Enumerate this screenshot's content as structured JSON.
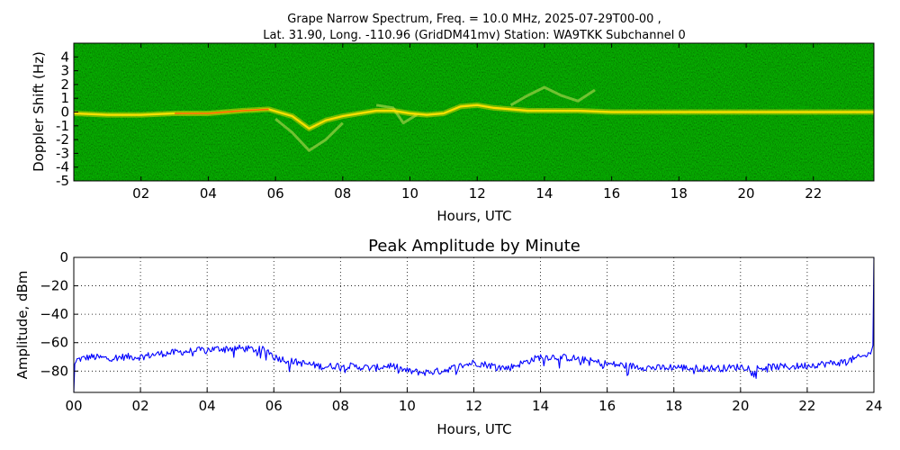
{
  "figure": {
    "title_line1": "Grape Narrow Spectrum, Freq. = 10.0 MHz, 2025-07-29T00-00 ,",
    "title_line2": "Lat.  31.90, Long. -110.96 (GridDM41mv) Station: WA9TKK Subchannel 0"
  },
  "colors": {
    "spectrogram_background": "#0f7d00",
    "spectrogram_carrier": "#ffe000",
    "spectrogram_peak": "#ff5a00",
    "amplitude_line": "#0000ff",
    "axes": "#000000"
  },
  "chart_data": [
    {
      "type": "heatmap",
      "title": "",
      "xlabel": "Hours, UTC",
      "ylabel": "Doppler Shift (Hz)",
      "xlim": [
        0,
        23.8
      ],
      "ylim": [
        -5,
        5
      ],
      "xticks": [
        {
          "v": 2,
          "label": "02"
        },
        {
          "v": 4,
          "label": "04"
        },
        {
          "v": 6,
          "label": "06"
        },
        {
          "v": 8,
          "label": "08"
        },
        {
          "v": 10,
          "label": "10"
        },
        {
          "v": 12,
          "label": "12"
        },
        {
          "v": 14,
          "label": "14"
        },
        {
          "v": 16,
          "label": "16"
        },
        {
          "v": 18,
          "label": "18"
        },
        {
          "v": 20,
          "label": "20"
        },
        {
          "v": 22,
          "label": "22"
        }
      ],
      "yticks": [
        {
          "v": 4,
          "label": "4"
        },
        {
          "v": 3,
          "label": "3"
        },
        {
          "v": 2,
          "label": "2"
        },
        {
          "v": 1,
          "label": "1"
        },
        {
          "v": 0,
          "label": "0"
        },
        {
          "v": -1,
          "label": "-1"
        },
        {
          "v": -2,
          "label": "-2"
        },
        {
          "v": -3,
          "label": "-3"
        },
        {
          "v": -4,
          "label": "-4"
        },
        {
          "v": -5,
          "label": "-5"
        }
      ],
      "carrier_trace": {
        "x": [
          0,
          1,
          2,
          3,
          4,
          5,
          5.8,
          6.5,
          7,
          7.5,
          8,
          8.5,
          9,
          9.5,
          10,
          10.5,
          11,
          11.5,
          12,
          12.5,
          13,
          13.5,
          14,
          15,
          16,
          17,
          18,
          19,
          20,
          21,
          22,
          23,
          23.8
        ],
        "y": [
          -0.1,
          -0.2,
          -0.2,
          -0.1,
          -0.1,
          0.1,
          0.2,
          -0.3,
          -1.2,
          -0.6,
          -0.3,
          -0.1,
          0.1,
          0.1,
          -0.1,
          -0.2,
          -0.1,
          0.4,
          0.5,
          0.3,
          0.2,
          0.1,
          0.1,
          0.1,
          0.0,
          0.0,
          0.0,
          0.0,
          0.0,
          0.0,
          0.0,
          0.0,
          0.0
        ]
      },
      "secondary_traces": [
        {
          "x": [
            6,
            6.5,
            7,
            7.5,
            8
          ],
          "y": [
            -0.5,
            -1.5,
            -2.8,
            -2.0,
            -0.8
          ]
        },
        {
          "x": [
            13,
            13.5,
            14,
            14.5,
            15,
            15.5
          ],
          "y": [
            0.5,
            1.2,
            1.8,
            1.2,
            0.8,
            1.6
          ]
        },
        {
          "x": [
            9,
            9.5,
            9.8,
            10.2
          ],
          "y": [
            0.5,
            0.3,
            -0.8,
            -0.2
          ]
        }
      ]
    },
    {
      "type": "line",
      "title": "Peak Amplitude by Minute",
      "xlabel": "Hours, UTC",
      "ylabel": "Amplitude, dBm",
      "xlim": [
        0,
        24
      ],
      "ylim": [
        -95,
        0
      ],
      "grid": true,
      "xticks": [
        {
          "v": 0,
          "label": "00"
        },
        {
          "v": 2,
          "label": "02"
        },
        {
          "v": 4,
          "label": "04"
        },
        {
          "v": 6,
          "label": "06"
        },
        {
          "v": 8,
          "label": "08"
        },
        {
          "v": 10,
          "label": "10"
        },
        {
          "v": 12,
          "label": "12"
        },
        {
          "v": 14,
          "label": "14"
        },
        {
          "v": 16,
          "label": "16"
        },
        {
          "v": 18,
          "label": "18"
        },
        {
          "v": 20,
          "label": "20"
        },
        {
          "v": 22,
          "label": "22"
        },
        {
          "v": 24,
          "label": "24"
        }
      ],
      "yticks": [
        {
          "v": 0,
          "label": "0"
        },
        {
          "v": -20,
          "label": "−20"
        },
        {
          "v": -40,
          "label": "−40"
        },
        {
          "v": -60,
          "label": "−60"
        },
        {
          "v": -80,
          "label": "−80"
        }
      ],
      "series": [
        {
          "x": [
            0,
            0.03,
            0.1,
            0.5,
            1,
            1.5,
            2,
            2.5,
            3,
            3.5,
            4,
            4.5,
            5,
            5.5,
            5.8,
            6,
            6.5,
            7,
            7.5,
            8,
            8.5,
            9,
            9.5,
            10,
            10.5,
            11,
            11.5,
            12,
            12.5,
            13,
            13.5,
            14,
            14.5,
            15,
            15.5,
            16,
            16.5,
            17,
            17.5,
            18,
            18.5,
            19,
            19.5,
            20,
            20.5,
            21,
            21.5,
            22,
            22.5,
            23,
            23.5,
            23.9,
            23.97,
            24
          ],
          "y": [
            -95,
            -75,
            -72,
            -70,
            -71,
            -70,
            -70,
            -68,
            -67,
            -66,
            -65,
            -64,
            -64,
            -65,
            -65,
            -70,
            -73,
            -75,
            -77,
            -76,
            -77,
            -78,
            -76,
            -80,
            -81,
            -80,
            -77,
            -74,
            -76,
            -78,
            -74,
            -70,
            -70,
            -71,
            -73,
            -75,
            -76,
            -77,
            -78,
            -77,
            -78,
            -78,
            -78,
            -77,
            -78,
            -77,
            -77,
            -76,
            -75,
            -74,
            -71,
            -68,
            -62,
            0
          ]
        }
      ]
    }
  ]
}
